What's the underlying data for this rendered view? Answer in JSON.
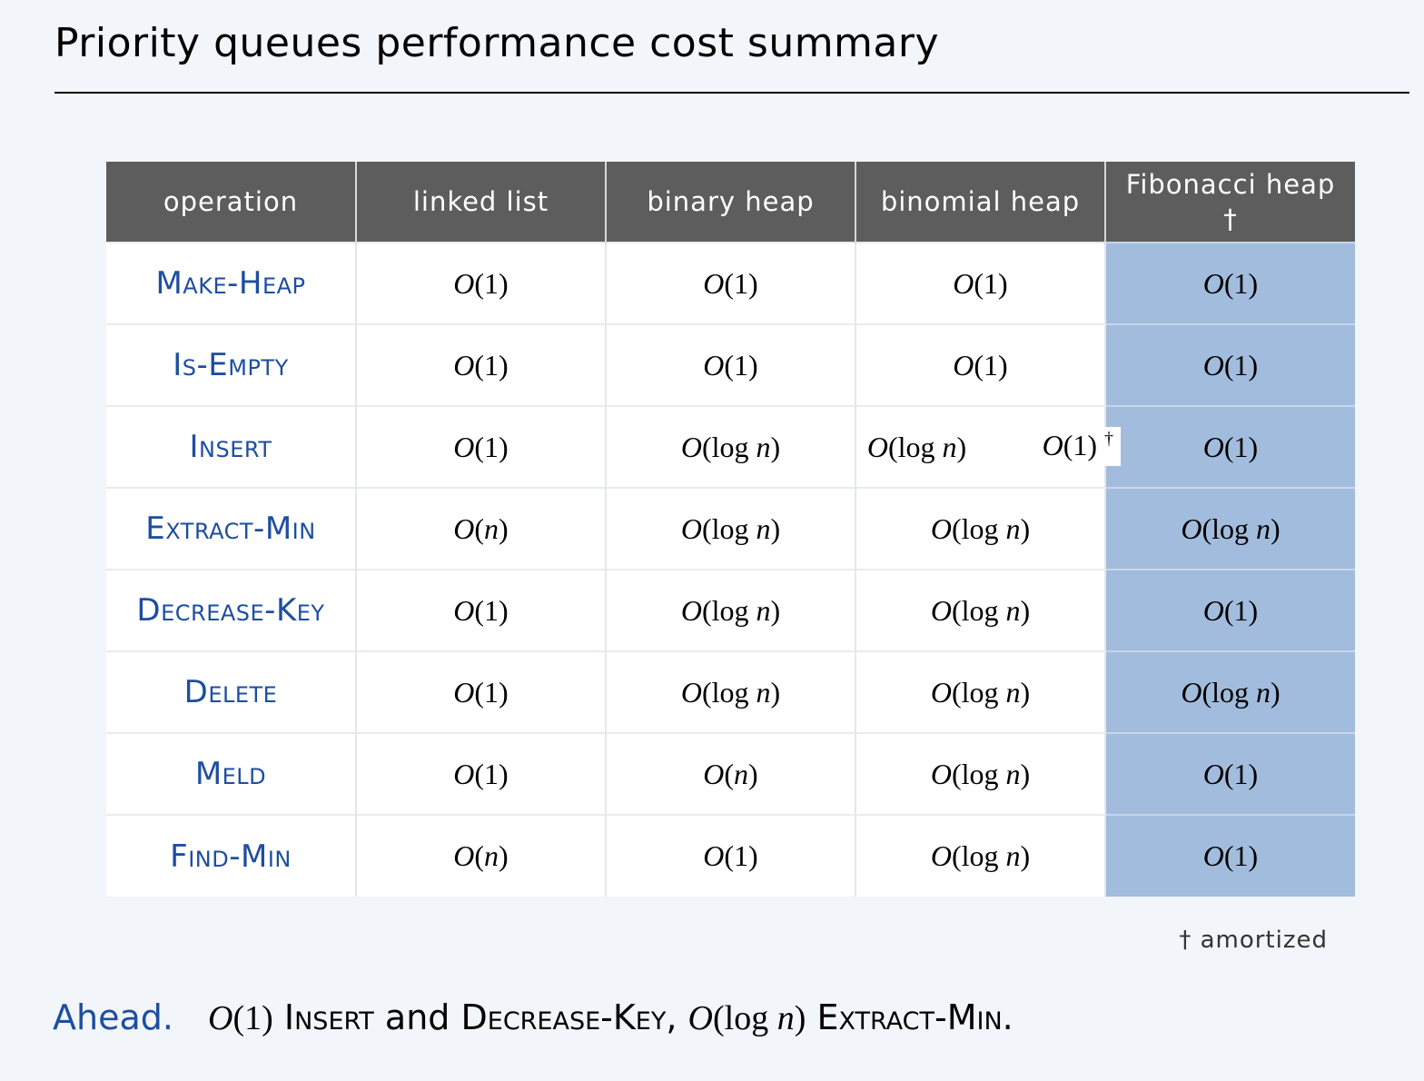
{
  "title": "Priority queues performance cost summary",
  "table": {
    "headers": [
      "operation",
      "linked list",
      "binary heap",
      "binomial heap",
      "Fibonacci heap",
      "†"
    ],
    "rows": [
      {
        "op": "Make-Heap",
        "linked": "O(1)",
        "binary": "O(1)",
        "binomial": "O(1)",
        "fib": "O(1)"
      },
      {
        "op": "Is-Empty",
        "linked": "O(1)",
        "binary": "O(1)",
        "binomial": "O(1)",
        "fib": "O(1)"
      },
      {
        "op": "Insert",
        "linked": "O(1)",
        "binary": "O(log n)",
        "binomial": "O(log n)",
        "fib": "O(1)",
        "binomial_note": "O(1)",
        "binomial_note_mark": "†"
      },
      {
        "op": "Extract-Min",
        "linked": "O(n)",
        "binary": "O(log n)",
        "binomial": "O(log n)",
        "fib": "O(log n)"
      },
      {
        "op": "Decrease-Key",
        "linked": "O(1)",
        "binary": "O(log n)",
        "binomial": "O(log n)",
        "fib": "O(1)"
      },
      {
        "op": "Delete",
        "linked": "O(1)",
        "binary": "O(log n)",
        "binomial": "O(log n)",
        "fib": "O(log n)"
      },
      {
        "op": "Meld",
        "linked": "O(1)",
        "binary": "O(n)",
        "binomial": "O(log n)",
        "fib": "O(1)"
      },
      {
        "op": "Find-Min",
        "linked": "O(n)",
        "binary": "O(1)",
        "binomial": "O(log n)",
        "fib": "O(1)"
      }
    ],
    "highlight_color": "#a2bcdd",
    "header_color": "#5d5d5d",
    "op_color": "#1d4ea0"
  },
  "footnote": "†  amortized",
  "ahead": {
    "lead": "Ahead.",
    "parts": [
      "O(1)",
      "Insert",
      "and",
      "Decrease-Key,",
      "O(log n)",
      "Extract-Min."
    ]
  }
}
